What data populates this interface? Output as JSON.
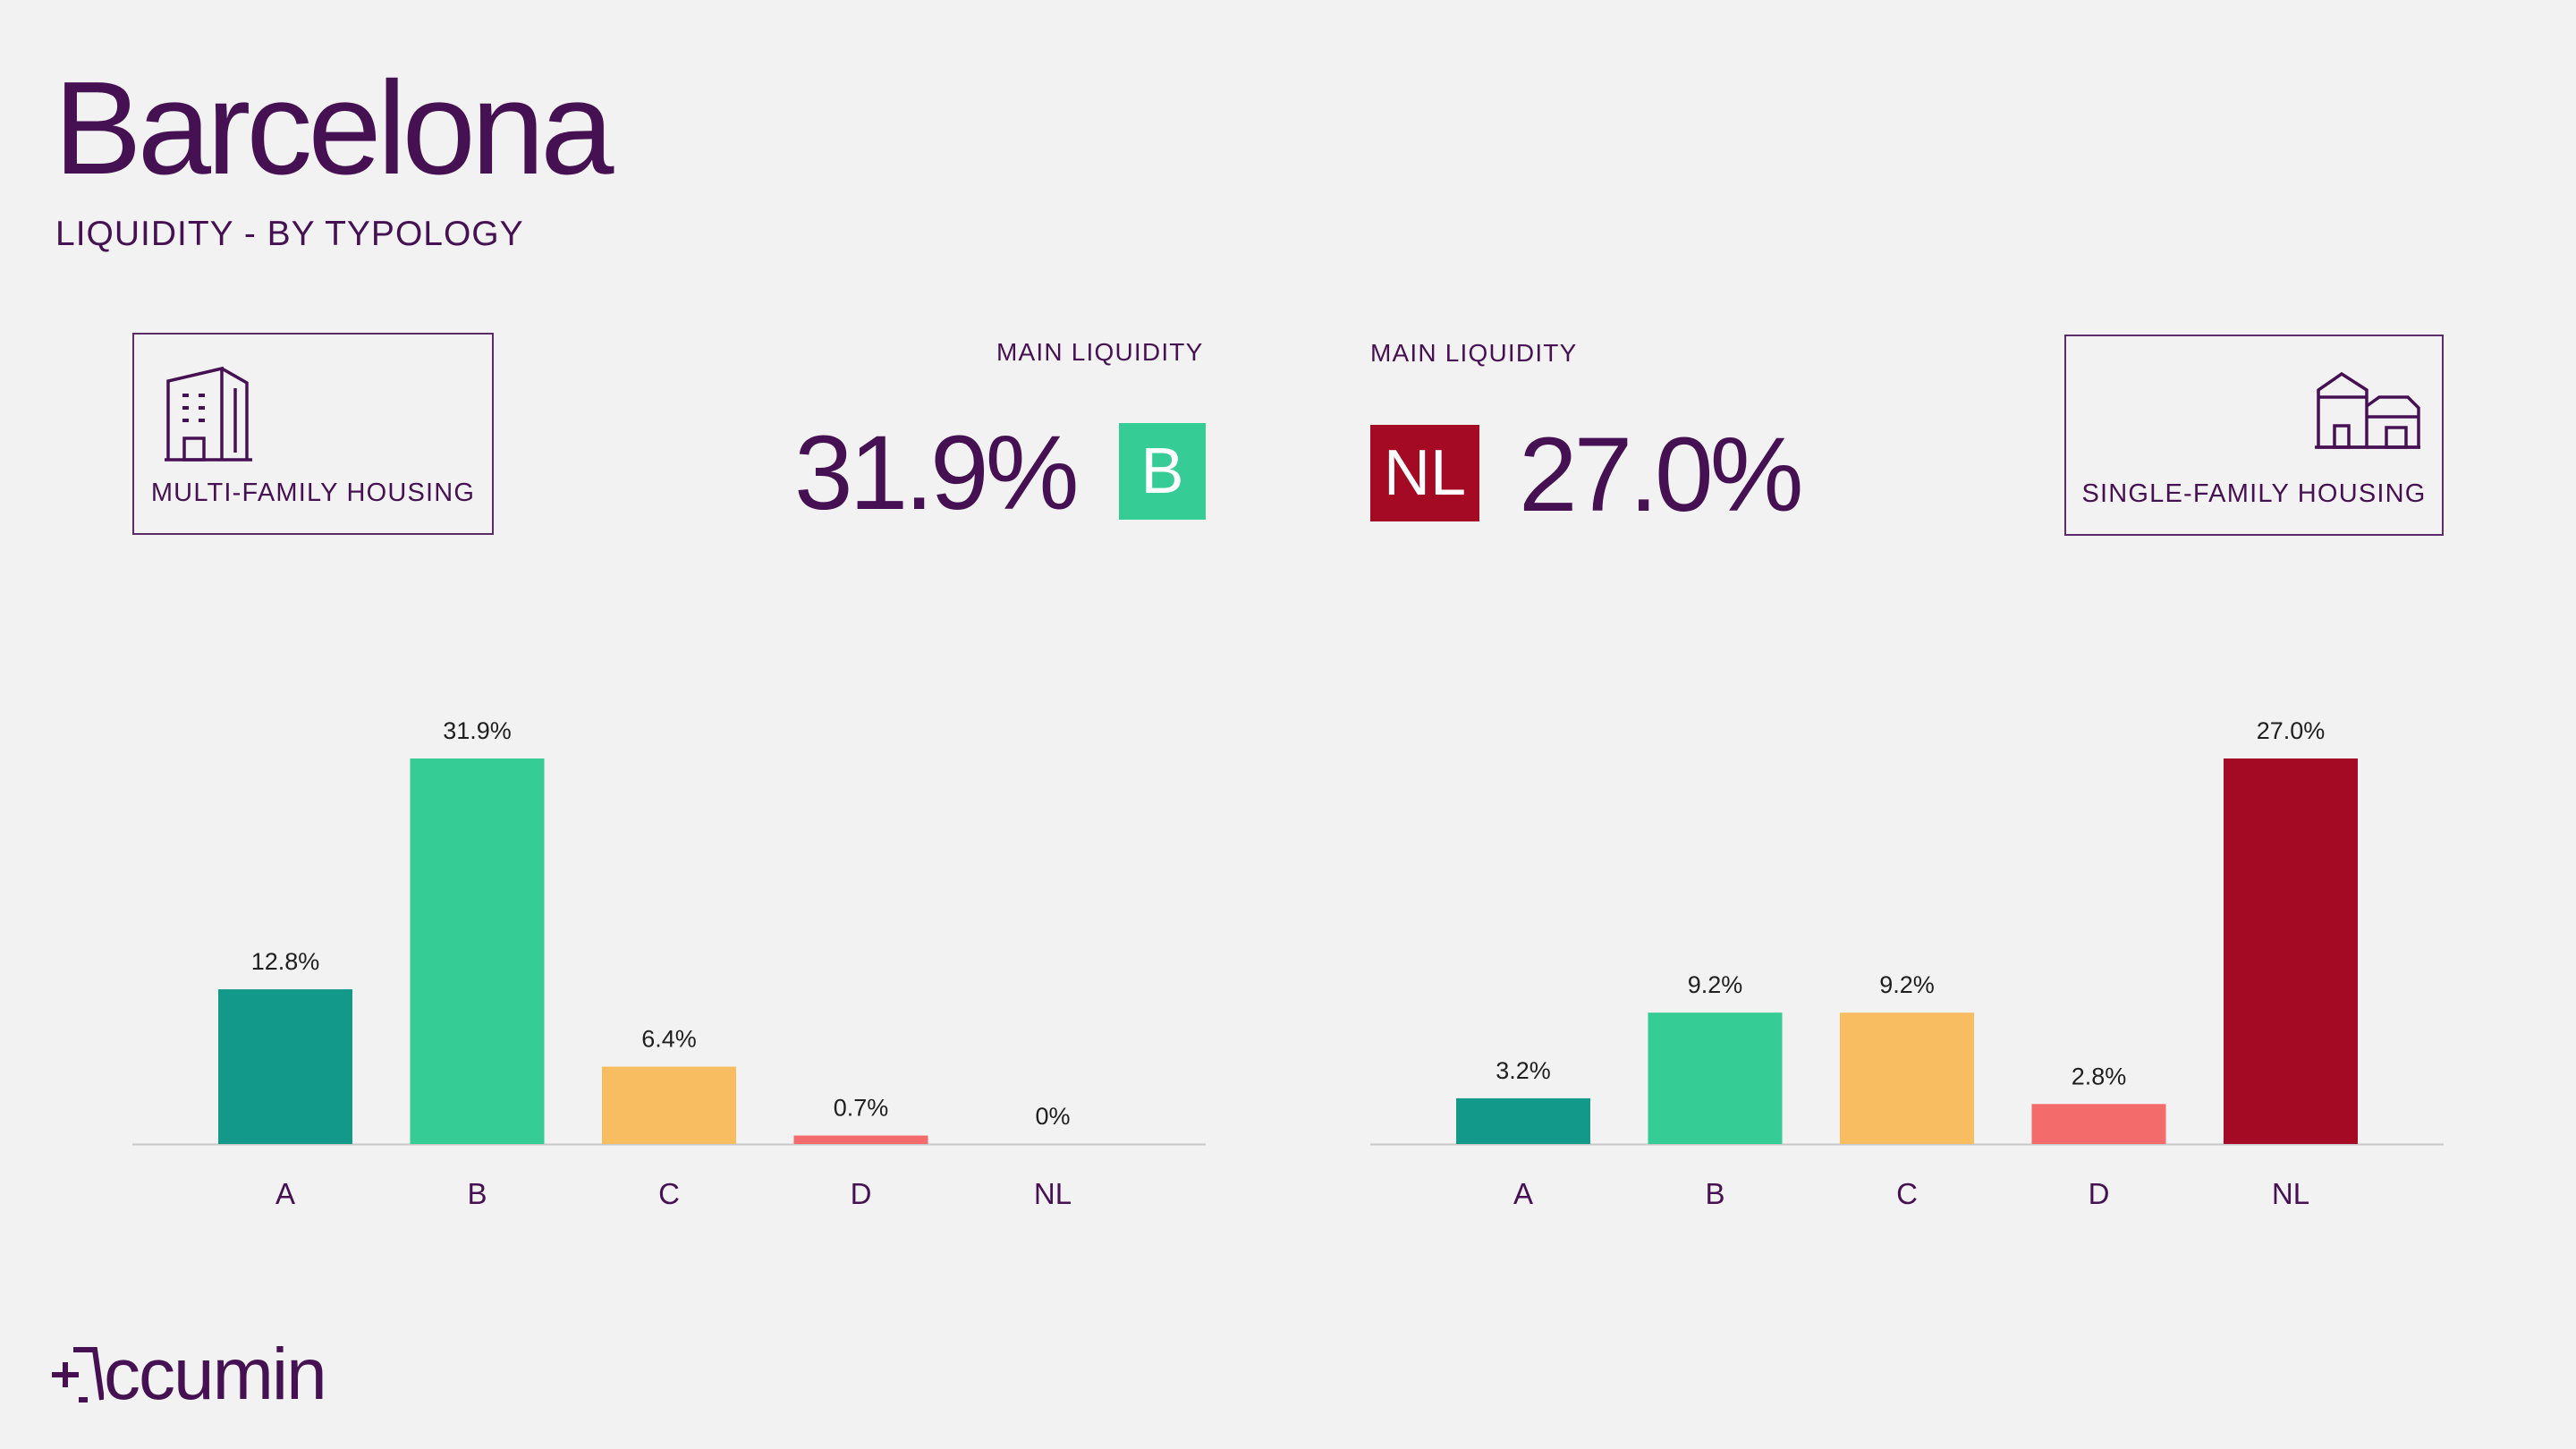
{
  "header": {
    "title": "Barcelona",
    "subtitle": "LIQUIDITY - BY TYPOLOGY"
  },
  "left": {
    "typology_label": "MULTI-FAMILY HOUSING",
    "main_label": "MAIN LIQUIDITY",
    "main_pct": "31.9%",
    "main_grade": "B",
    "main_grade_color": "#36cc96"
  },
  "right": {
    "typology_label": "SINGLE-FAMILY HOUSING",
    "main_label": "MAIN LIQUIDITY",
    "main_pct": "27.0%",
    "main_grade": "NL",
    "main_grade_color": "#a50a25"
  },
  "colors": {
    "A": "#129989",
    "B": "#36cc96",
    "C": "#f7bd60",
    "D": "#f46b6b",
    "NL": "#a50a25",
    "brand": "#461152"
  },
  "chart_data": [
    {
      "type": "bar",
      "title": "MULTI-FAMILY HOUSING",
      "categories": [
        "A",
        "B",
        "C",
        "D",
        "NL"
      ],
      "values": [
        12.8,
        31.9,
        6.4,
        0.7,
        0
      ],
      "labels": [
        "12.8%",
        "31.9%",
        "6.4%",
        "0.7%",
        "0%"
      ],
      "ylim": [
        0,
        31.9
      ]
    },
    {
      "type": "bar",
      "title": "SINGLE-FAMILY HOUSING",
      "categories": [
        "A",
        "B",
        "C",
        "D",
        "NL"
      ],
      "values": [
        3.2,
        9.2,
        9.2,
        2.8,
        27.0
      ],
      "labels": [
        "3.2%",
        "9.2%",
        "9.2%",
        "2.8%",
        "27.0%"
      ],
      "ylim": [
        0,
        27.0
      ]
    }
  ],
  "footer": {
    "logo_text": "ccumin"
  }
}
